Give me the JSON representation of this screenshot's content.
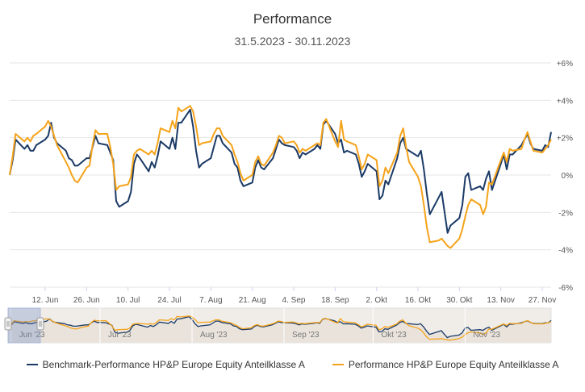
{
  "chart_data": {
    "type": "line",
    "title": "Performance",
    "subtitle": "31.5.2023 - 30.11.2023",
    "ylim": [
      -6,
      6
    ],
    "y_ticks": [
      "+6%",
      "+4%",
      "+2%",
      "0%",
      "-2%",
      "-4%",
      "-6%"
    ],
    "y_tick_values": [
      6,
      4,
      2,
      0,
      -2,
      -4,
      -6
    ],
    "x_range": [
      "2023-05-31",
      "2023-11-30"
    ],
    "x_ticks": [
      {
        "date": "2023-06-12",
        "label": "12. Jun"
      },
      {
        "date": "2023-06-26",
        "label": "26. Jun"
      },
      {
        "date": "2023-07-10",
        "label": "10. Jul"
      },
      {
        "date": "2023-07-24",
        "label": "24. Jul"
      },
      {
        "date": "2023-08-07",
        "label": "7. Aug"
      },
      {
        "date": "2023-08-21",
        "label": "21. Aug"
      },
      {
        "date": "2023-09-04",
        "label": "4. Sep"
      },
      {
        "date": "2023-09-18",
        "label": "18. Sep"
      },
      {
        "date": "2023-10-02",
        "label": "2. Okt"
      },
      {
        "date": "2023-10-16",
        "label": "16. Okt"
      },
      {
        "date": "2023-10-30",
        "label": "30. Okt"
      },
      {
        "date": "2023-11-13",
        "label": "13. Nov"
      },
      {
        "date": "2023-11-27",
        "label": "27. Nov"
      }
    ],
    "navigator_ticks": [
      {
        "date": "2023-06-01",
        "label": "Jun '23"
      },
      {
        "date": "2023-07-01",
        "label": "Jul '23"
      },
      {
        "date": "2023-08-01",
        "label": "Aug '23"
      },
      {
        "date": "2023-09-01",
        "label": "Sep '23"
      },
      {
        "date": "2023-10-01",
        "label": "Okt '23"
      },
      {
        "date": "2023-11-01",
        "label": "Nov '23"
      }
    ],
    "grid": true,
    "legend_position": "bottom",
    "series": [
      {
        "name": "Benchmark-Performance HP&P Europe Equity Anteilklasse A",
        "color": "#1b3a66",
        "points": [
          [
            "2023-05-31",
            0.0
          ],
          [
            "2023-06-01",
            0.8
          ],
          [
            "2023-06-02",
            1.9
          ],
          [
            "2023-06-05",
            1.4
          ],
          [
            "2023-06-06",
            1.6
          ],
          [
            "2023-06-07",
            1.3
          ],
          [
            "2023-06-08",
            1.3
          ],
          [
            "2023-06-09",
            1.6
          ],
          [
            "2023-06-12",
            1.9
          ],
          [
            "2023-06-13",
            2.1
          ],
          [
            "2023-06-14",
            2.8
          ],
          [
            "2023-06-15",
            2.0
          ],
          [
            "2023-06-16",
            1.7
          ],
          [
            "2023-06-19",
            1.3
          ],
          [
            "2023-06-20",
            0.9
          ],
          [
            "2023-06-21",
            0.8
          ],
          [
            "2023-06-22",
            0.5
          ],
          [
            "2023-06-23",
            0.5
          ],
          [
            "2023-06-26",
            0.9
          ],
          [
            "2023-06-27",
            0.9
          ],
          [
            "2023-06-28",
            1.5
          ],
          [
            "2023-06-29",
            2.1
          ],
          [
            "2023-06-30",
            1.7
          ],
          [
            "2023-07-03",
            1.6
          ],
          [
            "2023-07-04",
            1.2
          ],
          [
            "2023-07-05",
            0.8
          ],
          [
            "2023-07-06",
            -1.4
          ],
          [
            "2023-07-07",
            -1.7
          ],
          [
            "2023-07-10",
            -1.4
          ],
          [
            "2023-07-11",
            -0.9
          ],
          [
            "2023-07-12",
            0.6
          ],
          [
            "2023-07-13",
            1.1
          ],
          [
            "2023-07-14",
            0.9
          ],
          [
            "2023-07-17",
            0.2
          ],
          [
            "2023-07-18",
            0.7
          ],
          [
            "2023-07-19",
            0.4
          ],
          [
            "2023-07-20",
            1.0
          ],
          [
            "2023-07-21",
            1.8
          ],
          [
            "2023-07-24",
            1.4
          ],
          [
            "2023-07-25",
            2.0
          ],
          [
            "2023-07-26",
            1.4
          ],
          [
            "2023-07-27",
            2.8
          ],
          [
            "2023-07-28",
            2.8
          ],
          [
            "2023-07-31",
            3.5
          ],
          [
            "2023-08-01",
            2.6
          ],
          [
            "2023-08-02",
            1.3
          ],
          [
            "2023-08-03",
            0.4
          ],
          [
            "2023-08-04",
            0.6
          ],
          [
            "2023-08-07",
            0.9
          ],
          [
            "2023-08-08",
            1.5
          ],
          [
            "2023-08-09",
            2.1
          ],
          [
            "2023-08-10",
            2.1
          ],
          [
            "2023-08-11",
            1.7
          ],
          [
            "2023-08-14",
            1.2
          ],
          [
            "2023-08-15",
            0.6
          ],
          [
            "2023-08-16",
            0.4
          ],
          [
            "2023-08-17",
            -0.3
          ],
          [
            "2023-08-18",
            -0.6
          ],
          [
            "2023-08-21",
            -0.4
          ],
          [
            "2023-08-22",
            0.4
          ],
          [
            "2023-08-23",
            0.8
          ],
          [
            "2023-08-24",
            0.4
          ],
          [
            "2023-08-25",
            0.3
          ],
          [
            "2023-08-28",
            0.9
          ],
          [
            "2023-08-29",
            1.4
          ],
          [
            "2023-08-30",
            1.9
          ],
          [
            "2023-08-31",
            1.7
          ],
          [
            "2023-09-01",
            1.6
          ],
          [
            "2023-09-04",
            1.5
          ],
          [
            "2023-09-05",
            1.3
          ],
          [
            "2023-09-06",
            0.9
          ],
          [
            "2023-09-07",
            1.2
          ],
          [
            "2023-09-08",
            1.1
          ],
          [
            "2023-09-11",
            1.4
          ],
          [
            "2023-09-12",
            1.6
          ],
          [
            "2023-09-13",
            1.4
          ],
          [
            "2023-09-14",
            2.7
          ],
          [
            "2023-09-15",
            2.9
          ],
          [
            "2023-09-18",
            2.2
          ],
          [
            "2023-09-19",
            1.7
          ],
          [
            "2023-09-20",
            1.9
          ],
          [
            "2023-09-21",
            1.2
          ],
          [
            "2023-09-22",
            1.3
          ],
          [
            "2023-09-25",
            1.1
          ],
          [
            "2023-09-26",
            0.6
          ],
          [
            "2023-09-27",
            -0.1
          ],
          [
            "2023-09-28",
            0.2
          ],
          [
            "2023-09-29",
            0.6
          ],
          [
            "2023-10-02",
            0.2
          ],
          [
            "2023-10-03",
            -1.3
          ],
          [
            "2023-10-04",
            -1.1
          ],
          [
            "2023-10-05",
            -0.3
          ],
          [
            "2023-10-06",
            -0.5
          ],
          [
            "2023-10-09",
            0.9
          ],
          [
            "2023-10-10",
            1.7
          ],
          [
            "2023-10-11",
            2.0
          ],
          [
            "2023-10-12",
            1.4
          ],
          [
            "2023-10-13",
            1.3
          ],
          [
            "2023-10-16",
            1.0
          ],
          [
            "2023-10-17",
            1.3
          ],
          [
            "2023-10-18",
            0.3
          ],
          [
            "2023-10-19",
            -1.0
          ],
          [
            "2023-10-20",
            -2.1
          ],
          [
            "2023-10-23",
            -1.2
          ],
          [
            "2023-10-24",
            -0.9
          ],
          [
            "2023-10-25",
            -2.0
          ],
          [
            "2023-10-26",
            -3.1
          ],
          [
            "2023-10-27",
            -2.7
          ],
          [
            "2023-10-30",
            -2.3
          ],
          [
            "2023-10-31",
            -1.6
          ],
          [
            "2023-11-01",
            -0.1
          ],
          [
            "2023-11-02",
            0.1
          ],
          [
            "2023-11-03",
            -0.8
          ],
          [
            "2023-11-06",
            -0.6
          ],
          [
            "2023-11-07",
            -0.8
          ],
          [
            "2023-11-08",
            -0.2
          ],
          [
            "2023-11-09",
            0.2
          ],
          [
            "2023-11-10",
            -0.8
          ],
          [
            "2023-11-13",
            0.6
          ],
          [
            "2023-11-14",
            1.1
          ],
          [
            "2023-11-15",
            0.3
          ],
          [
            "2023-11-16",
            1.1
          ],
          [
            "2023-11-17",
            1.1
          ],
          [
            "2023-11-20",
            1.6
          ],
          [
            "2023-11-21",
            1.9
          ],
          [
            "2023-11-22",
            2.2
          ],
          [
            "2023-11-23",
            1.7
          ],
          [
            "2023-11-24",
            1.4
          ],
          [
            "2023-11-27",
            1.3
          ],
          [
            "2023-11-28",
            1.6
          ],
          [
            "2023-11-29",
            1.5
          ],
          [
            "2023-11-30",
            2.3
          ]
        ]
      },
      {
        "name": "Performance HP&P Europe Equity Anteilklasse A",
        "color": "#f5a31a",
        "points": [
          [
            "2023-05-31",
            0.0
          ],
          [
            "2023-06-01",
            1.0
          ],
          [
            "2023-06-02",
            2.2
          ],
          [
            "2023-06-05",
            1.8
          ],
          [
            "2023-06-06",
            2.0
          ],
          [
            "2023-06-07",
            1.8
          ],
          [
            "2023-06-08",
            2.1
          ],
          [
            "2023-06-09",
            2.2
          ],
          [
            "2023-06-12",
            2.6
          ],
          [
            "2023-06-13",
            2.9
          ],
          [
            "2023-06-14",
            2.6
          ],
          [
            "2023-06-15",
            2.1
          ],
          [
            "2023-06-16",
            1.6
          ],
          [
            "2023-06-19",
            0.7
          ],
          [
            "2023-06-20",
            0.4
          ],
          [
            "2023-06-21",
            0.0
          ],
          [
            "2023-06-22",
            -0.3
          ],
          [
            "2023-06-23",
            -0.4
          ],
          [
            "2023-06-26",
            0.4
          ],
          [
            "2023-06-27",
            0.5
          ],
          [
            "2023-06-28",
            1.6
          ],
          [
            "2023-06-29",
            2.4
          ],
          [
            "2023-06-30",
            2.2
          ],
          [
            "2023-07-03",
            2.2
          ],
          [
            "2023-07-04",
            1.5
          ],
          [
            "2023-07-05",
            0.6
          ],
          [
            "2023-07-06",
            -0.8
          ],
          [
            "2023-07-07",
            -0.6
          ],
          [
            "2023-07-10",
            -0.5
          ],
          [
            "2023-07-11",
            -0.1
          ],
          [
            "2023-07-12",
            1.1
          ],
          [
            "2023-07-13",
            1.3
          ],
          [
            "2023-07-14",
            1.4
          ],
          [
            "2023-07-17",
            1.1
          ],
          [
            "2023-07-18",
            1.3
          ],
          [
            "2023-07-19",
            1.1
          ],
          [
            "2023-07-20",
            1.7
          ],
          [
            "2023-07-21",
            2.5
          ],
          [
            "2023-07-24",
            2.3
          ],
          [
            "2023-07-25",
            2.9
          ],
          [
            "2023-07-26",
            2.5
          ],
          [
            "2023-07-27",
            3.6
          ],
          [
            "2023-07-28",
            3.4
          ],
          [
            "2023-07-31",
            3.7
          ],
          [
            "2023-08-01",
            3.4
          ],
          [
            "2023-08-02",
            2.6
          ],
          [
            "2023-08-03",
            1.6
          ],
          [
            "2023-08-04",
            1.7
          ],
          [
            "2023-08-07",
            1.8
          ],
          [
            "2023-08-08",
            2.2
          ],
          [
            "2023-08-09",
            2.5
          ],
          [
            "2023-08-10",
            2.5
          ],
          [
            "2023-08-11",
            2.1
          ],
          [
            "2023-08-14",
            1.6
          ],
          [
            "2023-08-15",
            1.1
          ],
          [
            "2023-08-16",
            0.7
          ],
          [
            "2023-08-17",
            0.1
          ],
          [
            "2023-08-18",
            -0.3
          ],
          [
            "2023-08-21",
            0.0
          ],
          [
            "2023-08-22",
            0.7
          ],
          [
            "2023-08-23",
            1.0
          ],
          [
            "2023-08-24",
            0.6
          ],
          [
            "2023-08-25",
            0.5
          ],
          [
            "2023-08-28",
            1.2
          ],
          [
            "2023-08-29",
            1.6
          ],
          [
            "2023-08-30",
            2.1
          ],
          [
            "2023-08-31",
            2.0
          ],
          [
            "2023-09-01",
            1.7
          ],
          [
            "2023-09-04",
            1.8
          ],
          [
            "2023-09-05",
            1.6
          ],
          [
            "2023-09-06",
            1.2
          ],
          [
            "2023-09-07",
            1.4
          ],
          [
            "2023-09-08",
            1.3
          ],
          [
            "2023-09-11",
            1.6
          ],
          [
            "2023-09-12",
            1.7
          ],
          [
            "2023-09-13",
            1.6
          ],
          [
            "2023-09-14",
            2.8
          ],
          [
            "2023-09-15",
            3.0
          ],
          [
            "2023-09-18",
            1.8
          ],
          [
            "2023-09-19",
            1.5
          ],
          [
            "2023-09-20",
            2.9
          ],
          [
            "2023-09-21",
            1.9
          ],
          [
            "2023-09-22",
            1.8
          ],
          [
            "2023-09-25",
            1.6
          ],
          [
            "2023-09-26",
            1.0
          ],
          [
            "2023-09-27",
            0.3
          ],
          [
            "2023-09-28",
            0.6
          ],
          [
            "2023-09-29",
            1.1
          ],
          [
            "2023-10-02",
            0.8
          ],
          [
            "2023-10-03",
            -0.6
          ],
          [
            "2023-10-04",
            -0.3
          ],
          [
            "2023-10-05",
            0.4
          ],
          [
            "2023-10-06",
            0.1
          ],
          [
            "2023-10-09",
            1.2
          ],
          [
            "2023-10-10",
            2.1
          ],
          [
            "2023-10-11",
            2.5
          ],
          [
            "2023-10-12",
            1.5
          ],
          [
            "2023-10-13",
            0.7
          ],
          [
            "2023-10-16",
            -0.1
          ],
          [
            "2023-10-17",
            -0.6
          ],
          [
            "2023-10-18",
            -1.6
          ],
          [
            "2023-10-19",
            -2.8
          ],
          [
            "2023-10-20",
            -3.6
          ],
          [
            "2023-10-23",
            -3.5
          ],
          [
            "2023-10-24",
            -3.4
          ],
          [
            "2023-10-25",
            -3.6
          ],
          [
            "2023-10-26",
            -3.8
          ],
          [
            "2023-10-27",
            -3.9
          ],
          [
            "2023-10-30",
            -3.4
          ],
          [
            "2023-10-31",
            -2.9
          ],
          [
            "2023-11-01",
            -2.2
          ],
          [
            "2023-11-02",
            -1.6
          ],
          [
            "2023-11-03",
            -1.3
          ],
          [
            "2023-11-06",
            -1.6
          ],
          [
            "2023-11-07",
            -2.1
          ],
          [
            "2023-11-08",
            -1.7
          ],
          [
            "2023-11-09",
            -0.4
          ],
          [
            "2023-11-10",
            -0.5
          ],
          [
            "2023-11-13",
            0.8
          ],
          [
            "2023-11-14",
            1.2
          ],
          [
            "2023-11-15",
            0.7
          ],
          [
            "2023-11-16",
            1.4
          ],
          [
            "2023-11-17",
            1.3
          ],
          [
            "2023-11-20",
            1.4
          ],
          [
            "2023-11-21",
            1.9
          ],
          [
            "2023-11-22",
            2.3
          ],
          [
            "2023-11-23",
            1.8
          ],
          [
            "2023-11-24",
            1.3
          ],
          [
            "2023-11-27",
            1.2
          ],
          [
            "2023-11-28",
            1.4
          ],
          [
            "2023-11-29",
            1.6
          ],
          [
            "2023-11-30",
            1.9
          ]
        ]
      }
    ]
  }
}
